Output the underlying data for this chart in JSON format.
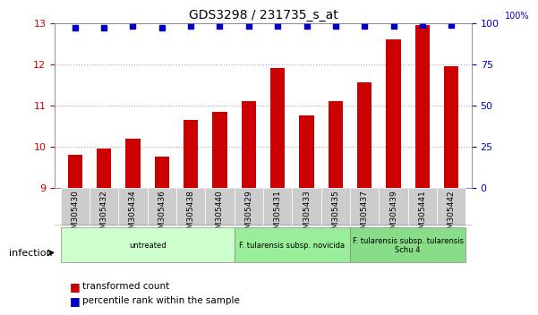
{
  "title": "GDS3298 / 231735_s_at",
  "samples": [
    "GSM305430",
    "GSM305432",
    "GSM305434",
    "GSM305436",
    "GSM305438",
    "GSM305440",
    "GSM305429",
    "GSM305431",
    "GSM305433",
    "GSM305435",
    "GSM305437",
    "GSM305439",
    "GSM305441",
    "GSM305442"
  ],
  "transformed_counts": [
    9.8,
    9.95,
    10.2,
    9.75,
    10.65,
    10.85,
    11.1,
    11.9,
    10.75,
    11.1,
    11.55,
    12.6,
    12.95,
    11.95
  ],
  "percentile_ranks": [
    97,
    97,
    98,
    97,
    98,
    98,
    98,
    98,
    98,
    98,
    98,
    98,
    99,
    99
  ],
  "bar_color": "#cc0000",
  "dot_color": "#0000cc",
  "ylim_left": [
    9,
    13
  ],
  "ylim_right": [
    0,
    100
  ],
  "yticks_left": [
    9,
    10,
    11,
    12,
    13
  ],
  "yticks_right": [
    0,
    25,
    50,
    75,
    100
  ],
  "groups": [
    {
      "label": "untreated",
      "start": 0,
      "end": 5,
      "color": "#ccffcc"
    },
    {
      "label": "F. tularensis subsp. novicida",
      "start": 6,
      "end": 9,
      "color": "#99ee99"
    },
    {
      "label": "F. tularensis subsp. tularensis\nSchu 4",
      "start": 10,
      "end": 13,
      "color": "#88dd88"
    }
  ],
  "legend_items": [
    {
      "label": "transformed count",
      "color": "#cc0000",
      "marker": "s"
    },
    {
      "label": "percentile rank within the sample",
      "color": "#0000cc",
      "marker": "s"
    }
  ],
  "infection_label": "infection",
  "background_color": "#ffffff",
  "grid_color": "#aaaaaa",
  "sample_bg_color": "#cccccc"
}
